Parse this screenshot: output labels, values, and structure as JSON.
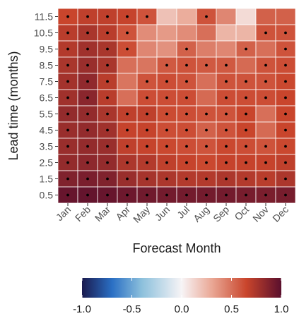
{
  "chart_data": {
    "type": "heatmap",
    "title": "",
    "xlabel": "Forecast Month",
    "ylabel": "Lead time (months)",
    "x_categories": [
      "Jan",
      "Feb",
      "Mar",
      "Apr",
      "May",
      "Jun",
      "Jul",
      "Aug",
      "Sep",
      "Oct",
      "Nov",
      "Dec"
    ],
    "y_categories": [
      "11.5",
      "10.5",
      "9.5",
      "8.5",
      "7.5",
      "6.5",
      "5.5",
      "4.5",
      "3.5",
      "2.5",
      "1.5",
      "0.5"
    ],
    "values": [
      [
        0.65,
        0.68,
        0.68,
        0.66,
        0.6,
        0.2,
        0.28,
        0.6,
        0.42,
        0.1,
        0.55,
        0.55
      ],
      [
        0.7,
        0.75,
        0.7,
        0.6,
        0.4,
        0.35,
        0.4,
        0.5,
        0.25,
        0.25,
        0.6,
        0.6
      ],
      [
        0.72,
        0.78,
        0.75,
        0.62,
        0.42,
        0.38,
        0.55,
        0.45,
        0.42,
        0.55,
        0.5,
        0.6
      ],
      [
        0.75,
        0.8,
        0.75,
        0.5,
        0.48,
        0.58,
        0.6,
        0.58,
        0.58,
        0.52,
        0.6,
        0.62
      ],
      [
        0.77,
        0.83,
        0.7,
        0.48,
        0.6,
        0.62,
        0.6,
        0.5,
        0.6,
        0.6,
        0.6,
        0.64
      ],
      [
        0.78,
        0.85,
        0.7,
        0.5,
        0.62,
        0.62,
        0.62,
        0.52,
        0.62,
        0.62,
        0.62,
        0.65
      ],
      [
        0.82,
        0.82,
        0.75,
        0.68,
        0.68,
        0.63,
        0.62,
        0.6,
        0.6,
        0.65,
        0.5,
        0.65
      ],
      [
        0.8,
        0.82,
        0.78,
        0.66,
        0.66,
        0.62,
        0.62,
        0.55,
        0.6,
        0.65,
        0.52,
        0.65
      ],
      [
        0.8,
        0.82,
        0.8,
        0.68,
        0.66,
        0.64,
        0.62,
        0.6,
        0.64,
        0.62,
        0.6,
        0.64
      ],
      [
        0.82,
        0.84,
        0.82,
        0.74,
        0.72,
        0.68,
        0.66,
        0.64,
        0.66,
        0.66,
        0.66,
        0.68
      ],
      [
        0.88,
        0.9,
        0.88,
        0.8,
        0.76,
        0.74,
        0.72,
        0.72,
        0.74,
        0.72,
        0.7,
        0.74
      ],
      [
        0.96,
        0.97,
        0.96,
        0.94,
        0.93,
        0.92,
        0.92,
        0.92,
        0.92,
        0.91,
        0.9,
        0.91
      ]
    ],
    "significant": [
      [
        1,
        1,
        1,
        1,
        1,
        0,
        0,
        1,
        0,
        0,
        0,
        0
      ],
      [
        1,
        1,
        1,
        1,
        0,
        0,
        0,
        0,
        0,
        0,
        1,
        1
      ],
      [
        1,
        1,
        1,
        1,
        0,
        0,
        1,
        0,
        0,
        1,
        0,
        1
      ],
      [
        1,
        1,
        1,
        0,
        0,
        1,
        1,
        1,
        1,
        0,
        1,
        1
      ],
      [
        1,
        1,
        1,
        0,
        1,
        1,
        1,
        0,
        1,
        1,
        1,
        1
      ],
      [
        1,
        1,
        1,
        0,
        1,
        1,
        1,
        0,
        1,
        1,
        1,
        1
      ],
      [
        1,
        1,
        1,
        1,
        1,
        1,
        1,
        1,
        1,
        1,
        0,
        1
      ],
      [
        1,
        1,
        1,
        1,
        1,
        1,
        1,
        1,
        1,
        1,
        0,
        1
      ],
      [
        1,
        1,
        1,
        1,
        1,
        1,
        1,
        1,
        1,
        1,
        1,
        1
      ],
      [
        1,
        1,
        1,
        1,
        1,
        1,
        1,
        1,
        1,
        1,
        1,
        1
      ],
      [
        1,
        1,
        1,
        1,
        1,
        1,
        1,
        1,
        1,
        1,
        1,
        1
      ],
      [
        1,
        1,
        1,
        1,
        1,
        1,
        1,
        1,
        1,
        1,
        1,
        1
      ]
    ],
    "color_scale": {
      "range": [
        -1.0,
        1.0
      ],
      "ticks": [
        "-1.0",
        "-0.5",
        "0.0",
        "0.5",
        "1.0"
      ],
      "tick_values": [
        -1.0,
        -0.5,
        0.0,
        0.5,
        1.0
      ],
      "stops": [
        {
          "v": -1.0,
          "color": "#1a1a4e"
        },
        {
          "v": -0.7,
          "color": "#2a6fc4"
        },
        {
          "v": -0.4,
          "color": "#8cc0dc"
        },
        {
          "v": 0.0,
          "color": "#f7f4f6"
        },
        {
          "v": 0.3,
          "color": "#eaa896"
        },
        {
          "v": 0.65,
          "color": "#c9452c"
        },
        {
          "v": 1.0,
          "color": "#5a0f2d"
        }
      ]
    },
    "legend": "bottom",
    "grid": true
  }
}
